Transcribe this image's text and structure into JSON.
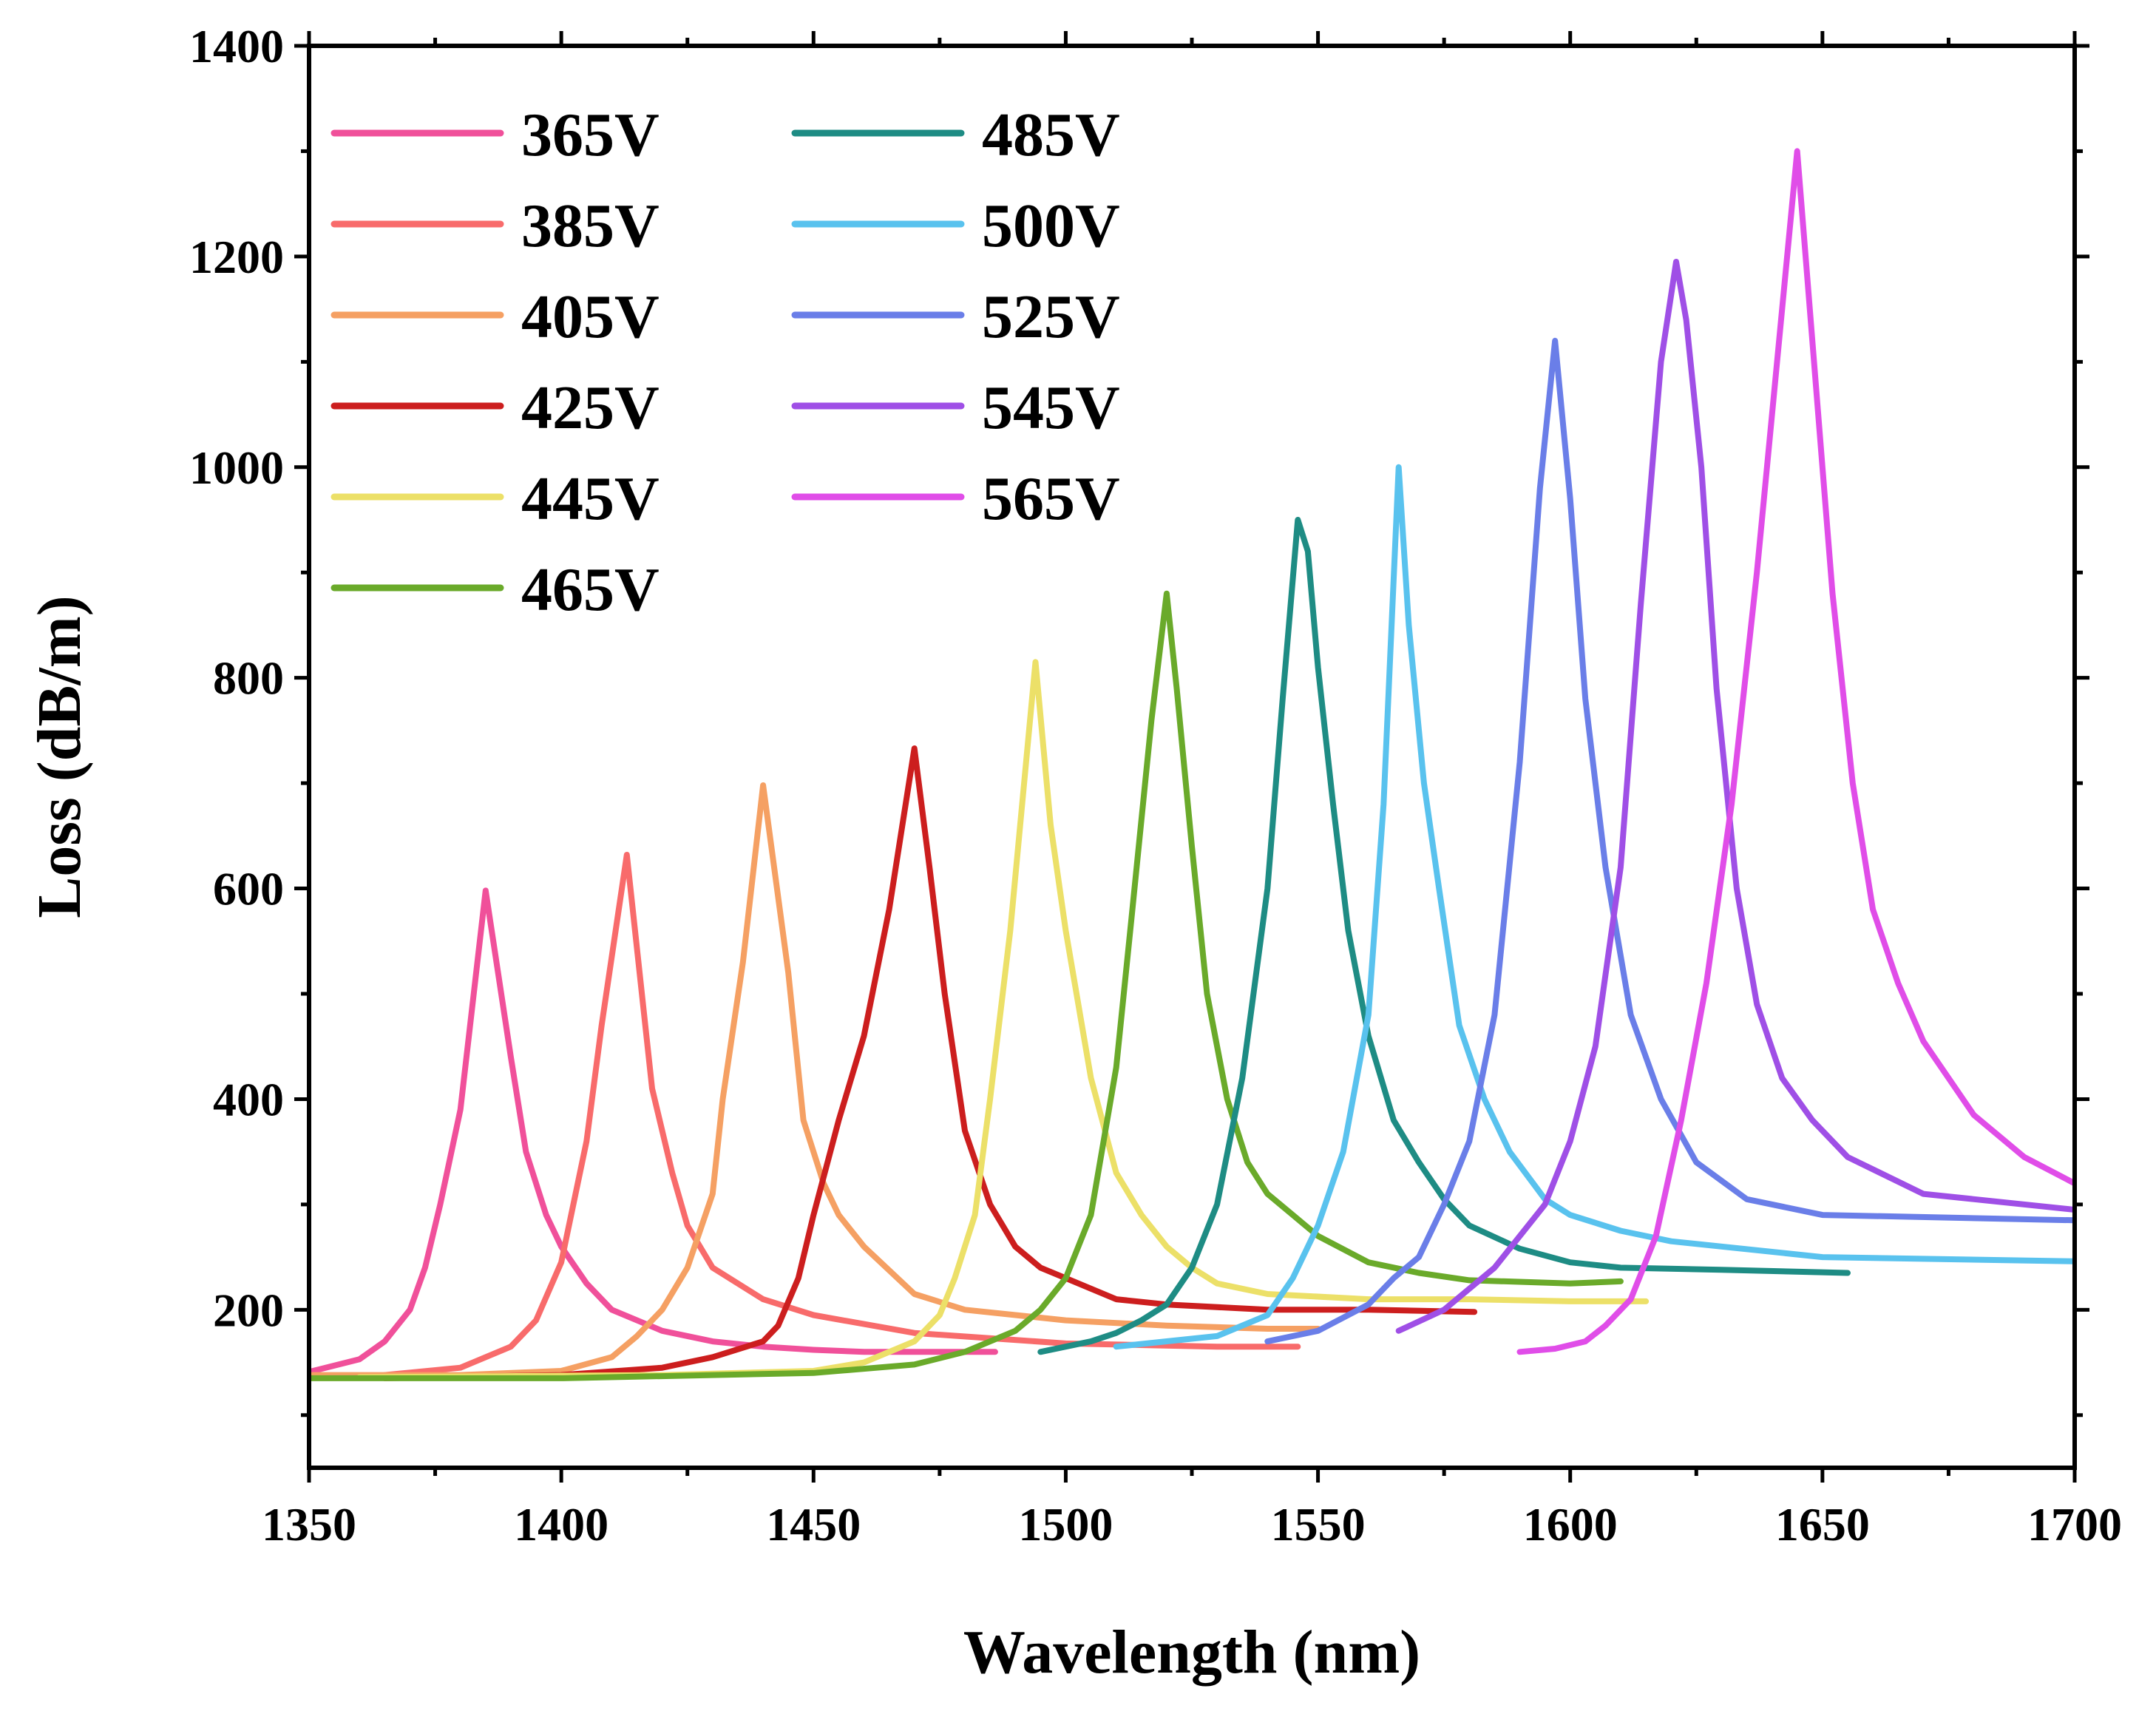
{
  "chart_data": {
    "type": "line",
    "title": "",
    "xlabel": "Wavelength (nm)",
    "ylabel": "Loss (dB/m)",
    "xlim": [
      1350,
      1700
    ],
    "ylim": [
      50,
      1400
    ],
    "xticks": [
      1350,
      1400,
      1450,
      1500,
      1550,
      1600,
      1650,
      1700
    ],
    "yticks": [
      200,
      400,
      600,
      800,
      1000,
      1200,
      1400
    ],
    "xtick_labels": [
      "1350",
      "1400",
      "1450",
      "1500",
      "1550",
      "1600",
      "1650",
      "1700"
    ],
    "ytick_labels": [
      "200",
      "400",
      "600",
      "800",
      "1000",
      "1200",
      "1400"
    ],
    "grid": false,
    "legend_position": "top-left",
    "series": [
      {
        "name": "365V",
        "color": "#f0509a",
        "x": [
          1350,
          1360,
          1365,
          1370,
          1373,
          1376,
          1380,
          1385,
          1390,
          1393,
          1397,
          1400,
          1405,
          1410,
          1420,
          1430,
          1440,
          1450,
          1460,
          1470,
          1486
        ],
        "y": [
          141,
          153,
          170,
          200,
          240,
          300,
          390,
          598,
          440,
          350,
          290,
          260,
          225,
          200,
          180,
          170,
          165,
          162,
          160,
          160,
          160
        ]
      },
      {
        "name": "385V",
        "color": "#f86b6b",
        "x": [
          1365,
          1380,
          1385,
          1390,
          1395,
          1400,
          1405,
          1408,
          1413,
          1418,
          1422,
          1425,
          1430,
          1440,
          1450,
          1470,
          1500,
          1530,
          1546
        ],
        "y": [
          138,
          145,
          155,
          165,
          190,
          245,
          360,
          470,
          632,
          410,
          330,
          280,
          240,
          210,
          195,
          178,
          168,
          165,
          165
        ]
      },
      {
        "name": "405V",
        "color": "#f5a063",
        "x": [
          1350,
          1380,
          1400,
          1410,
          1415,
          1420,
          1425,
          1430,
          1432,
          1436,
          1440,
          1445,
          1448,
          1452,
          1455,
          1460,
          1470,
          1480,
          1500,
          1520,
          1540,
          1550
        ],
        "y": [
          138,
          138,
          142,
          155,
          175,
          200,
          240,
          310,
          400,
          530,
          698,
          520,
          380,
          320,
          290,
          260,
          215,
          200,
          190,
          185,
          182,
          182
        ]
      },
      {
        "name": "425V",
        "color": "#cc1e1e",
        "x": [
          1365,
          1400,
          1420,
          1430,
          1440,
          1443,
          1447,
          1450,
          1455,
          1460,
          1465,
          1470,
          1473,
          1476,
          1480,
          1485,
          1490,
          1495,
          1500,
          1510,
          1520,
          1540,
          1560,
          1581
        ],
        "y": [
          135,
          138,
          145,
          155,
          170,
          185,
          230,
          290,
          380,
          460,
          580,
          733,
          620,
          500,
          370,
          300,
          260,
          240,
          230,
          210,
          205,
          200,
          200,
          198
        ]
      },
      {
        "name": "445V",
        "color": "#ece068",
        "x": [
          1360,
          1420,
          1450,
          1460,
          1470,
          1475,
          1478,
          1482,
          1485,
          1489,
          1494,
          1497,
          1500,
          1505,
          1510,
          1515,
          1520,
          1525,
          1530,
          1540,
          1560,
          1580,
          1600,
          1615
        ],
        "y": [
          136,
          138,
          142,
          150,
          170,
          195,
          230,
          290,
          400,
          560,
          815,
          660,
          560,
          420,
          330,
          290,
          260,
          240,
          225,
          215,
          210,
          210,
          208,
          208
        ]
      },
      {
        "name": "465V",
        "color": "#6aaa2a",
        "x": [
          1350,
          1400,
          1450,
          1470,
          1480,
          1490,
          1495,
          1500,
          1505,
          1510,
          1513,
          1517,
          1520,
          1522,
          1525,
          1528,
          1532,
          1536,
          1540,
          1545,
          1550,
          1560,
          1570,
          1580,
          1600,
          1610
        ],
        "y": [
          135,
          135,
          140,
          148,
          160,
          180,
          200,
          230,
          290,
          430,
          570,
          760,
          880,
          790,
          640,
          500,
          400,
          340,
          310,
          290,
          270,
          245,
          235,
          228,
          225,
          227
        ]
      },
      {
        "name": "485V",
        "color": "#1e8c84",
        "x": [
          1495,
          1505,
          1510,
          1515,
          1520,
          1525,
          1530,
          1535,
          1540,
          1543,
          1546,
          1548,
          1550,
          1553,
          1556,
          1560,
          1565,
          1570,
          1575,
          1580,
          1590,
          1600,
          1610,
          1630,
          1655
        ],
        "y": [
          160,
          170,
          178,
          190,
          205,
          240,
          300,
          420,
          600,
          780,
          950,
          920,
          810,
          680,
          560,
          460,
          380,
          340,
          305,
          280,
          258,
          245,
          240,
          238,
          235
        ]
      },
      {
        "name": "500V",
        "color": "#59c2ee",
        "x": [
          1510,
          1530,
          1540,
          1545,
          1550,
          1555,
          1560,
          1563,
          1566,
          1568,
          1571,
          1574,
          1578,
          1583,
          1588,
          1595,
          1600,
          1610,
          1620,
          1650,
          1700
        ],
        "y": [
          165,
          175,
          195,
          230,
          280,
          350,
          480,
          680,
          1000,
          850,
          700,
          600,
          470,
          400,
          350,
          305,
          290,
          275,
          265,
          250,
          246
        ]
      },
      {
        "name": "525V",
        "color": "#6a7ee8",
        "x": [
          1540,
          1550,
          1560,
          1565,
          1570,
          1575,
          1580,
          1585,
          1590,
          1594,
          1597,
          1600,
          1603,
          1607,
          1612,
          1618,
          1625,
          1635,
          1650,
          1700
        ],
        "y": [
          170,
          180,
          205,
          230,
          250,
          300,
          360,
          480,
          720,
          980,
          1120,
          970,
          780,
          620,
          480,
          400,
          340,
          305,
          290,
          285
        ]
      },
      {
        "name": "545V",
        "color": "#9f4fe6",
        "x": [
          1566,
          1575,
          1585,
          1595,
          1600,
          1605,
          1610,
          1614,
          1618,
          1621,
          1623,
          1626,
          1629,
          1633,
          1637,
          1642,
          1648,
          1655,
          1670,
          1700
        ],
        "y": [
          180,
          200,
          240,
          300,
          360,
          450,
          620,
          870,
          1100,
          1195,
          1140,
          1000,
          790,
          600,
          490,
          420,
          380,
          345,
          310,
          295
        ]
      },
      {
        "name": "565V",
        "color": "#e04de8",
        "x": [
          1590,
          1597,
          1603,
          1607,
          1612,
          1617,
          1622,
          1627,
          1632,
          1637,
          1641,
          1645,
          1648,
          1652,
          1656,
          1660,
          1665,
          1670,
          1680,
          1690,
          1700
        ],
        "y": [
          160,
          163,
          170,
          185,
          210,
          270,
          380,
          510,
          680,
          900,
          1100,
          1300,
          1120,
          880,
          700,
          580,
          510,
          455,
          385,
          345,
          320
        ]
      }
    ]
  }
}
